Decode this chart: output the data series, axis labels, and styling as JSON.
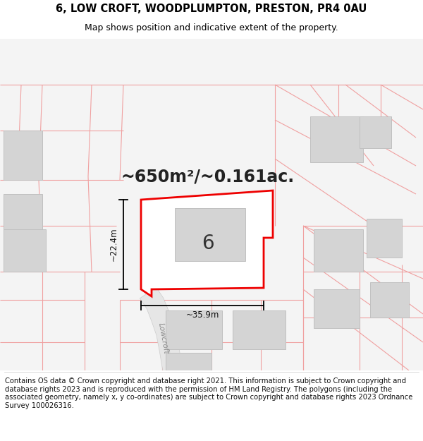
{
  "title": "6, LOW CROFT, WOODPLUMPTON, PRESTON, PR4 0AU",
  "subtitle": "Map shows position and indicative extent of the property.",
  "area_text": "~650m²/~0.161ac.",
  "label_6": "6",
  "dim_width": "~35.9m",
  "dim_height": "~22.4m",
  "street_label": "Lowcroft",
  "footer": "Contains OS data © Crown copyright and database right 2021. This information is subject to Crown copyright and database rights 2023 and is reproduced with the permission of HM Land Registry. The polygons (including the associated geometry, namely x, y co-ordinates) are subject to Crown copyright and database rights 2023 Ordnance Survey 100026316.",
  "bg_color": "#f5f5f5",
  "plot_fill": "#ffffff",
  "plot_edge": "#ee0000",
  "building_fill": "#d4d4d4",
  "building_edge": "#c0c0c0",
  "faint_line_color": "#f0a0a0",
  "road_fill": "#e8e8e8",
  "title_fontsize": 10.5,
  "subtitle_fontsize": 9,
  "area_fontsize": 17,
  "label_fontsize": 20,
  "footer_fontsize": 7.2
}
